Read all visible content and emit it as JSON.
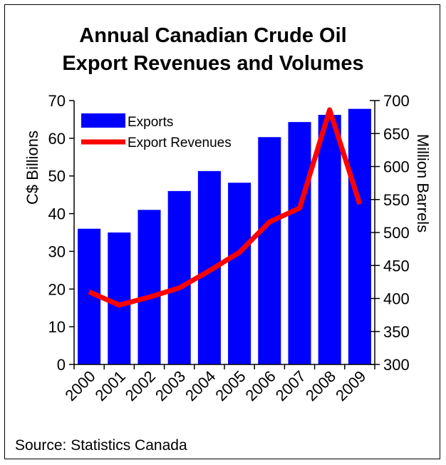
{
  "source": "Source: Statistics Canada",
  "chart_data": {
    "type": "bar+line",
    "title": "Annual Canadian Crude Oil\nExport Revenues and Volumes",
    "title_lines": [
      "Annual Canadian Crude Oil",
      "Export Revenues and Volumes"
    ],
    "categories": [
      "2000",
      "2001",
      "2002",
      "2003",
      "2004",
      "2005",
      "2006",
      "2007",
      "2008",
      "2009"
    ],
    "y_left": {
      "label": "C$ Billions",
      "ylim": [
        0,
        70
      ],
      "ticks": [
        0,
        10,
        20,
        30,
        40,
        50,
        60,
        70
      ]
    },
    "y_right": {
      "label": "Million Barrels",
      "ylim": [
        300,
        700
      ],
      "ticks": [
        300,
        350,
        400,
        450,
        500,
        550,
        600,
        650,
        700
      ]
    },
    "series": [
      {
        "name": "Exports",
        "kind": "bar",
        "axis": "left",
        "color": "#0000FF",
        "values": [
          36,
          35,
          41,
          46,
          51.3,
          48.2,
          60.3,
          64.3,
          66.2,
          67.8
        ]
      },
      {
        "name": "Export Revenues",
        "kind": "line",
        "axis": "right",
        "color": "#FF0000",
        "values": [
          410,
          390,
          402,
          416,
          442,
          470,
          516,
          537,
          686,
          543
        ]
      }
    ],
    "grid": false,
    "legend": "top-left"
  }
}
